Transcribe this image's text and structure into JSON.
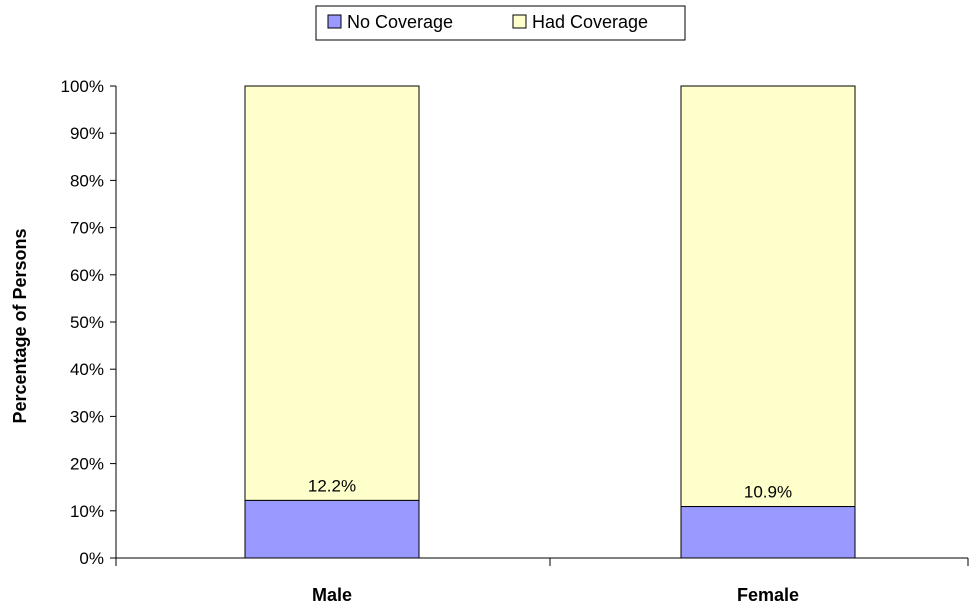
{
  "colors": {
    "no_coverage": "#9999ff",
    "had_coverage": "#ffffcc"
  },
  "chart_data": {
    "type": "bar",
    "stacked": true,
    "categories": [
      "Male",
      "Female"
    ],
    "series": [
      {
        "name": "No Coverage",
        "values": [
          12.2,
          10.9
        ],
        "data_labels": [
          "12.2%",
          "10.9%"
        ]
      },
      {
        "name": "Had Coverage",
        "values": [
          87.8,
          89.1
        ]
      }
    ],
    "ylabel": "Percentage of Persons",
    "ylim": [
      0,
      100
    ],
    "yticks": [
      "0%",
      "10%",
      "20%",
      "30%",
      "40%",
      "50%",
      "60%",
      "70%",
      "80%",
      "90%",
      "100%"
    ],
    "legend_position": "top-center",
    "grid": false
  }
}
